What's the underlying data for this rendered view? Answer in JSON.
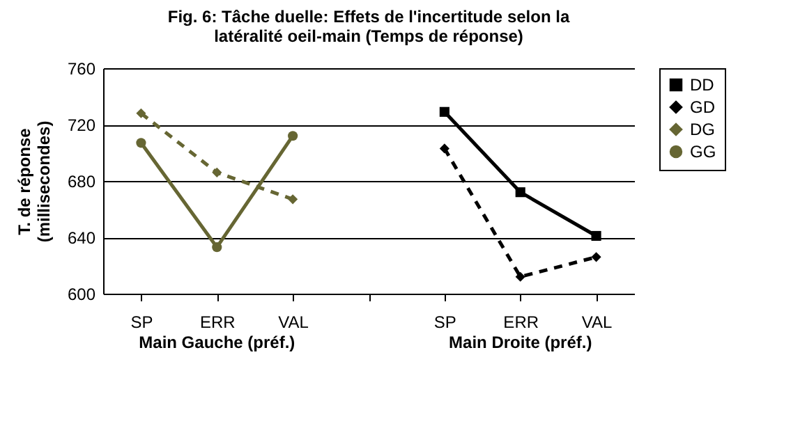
{
  "chart_data": {
    "type": "line",
    "title": "Fig. 6: Tâche duelle: Effets de l'incertitude selon la latéralité oeil-main (Temps de réponse)",
    "ylabel": "T. de réponse (millisecondes)",
    "categories": [
      "SP",
      "ERR",
      "VAL",
      null,
      "SP",
      "ERR",
      "VAL"
    ],
    "annotations": [
      "Main Gauche (préf.)",
      "Main Droite (préf.)"
    ],
    "series": [
      {
        "name": "DD",
        "color": "#000000",
        "marker": "square",
        "line_style": "solid",
        "values": [
          null,
          null,
          null,
          null,
          729,
          672,
          641
        ]
      },
      {
        "name": "GD",
        "color": "#000000",
        "marker": "diamond",
        "line_style": "dashed",
        "values": [
          null,
          null,
          null,
          null,
          703,
          612,
          626
        ]
      },
      {
        "name": "DG",
        "color": "#666633",
        "marker": "diamond",
        "line_style": "dashed",
        "values": [
          728,
          686,
          667,
          null,
          null,
          null,
          null
        ]
      },
      {
        "name": "GG",
        "color": "#666633",
        "marker": "circle",
        "line_style": "solid",
        "values": [
          707,
          633,
          712,
          null,
          null,
          null,
          null
        ]
      }
    ],
    "ylim": [
      600,
      760
    ],
    "yticks": [
      600,
      640,
      680,
      720,
      760
    ],
    "grid": "y",
    "legend": "right"
  }
}
